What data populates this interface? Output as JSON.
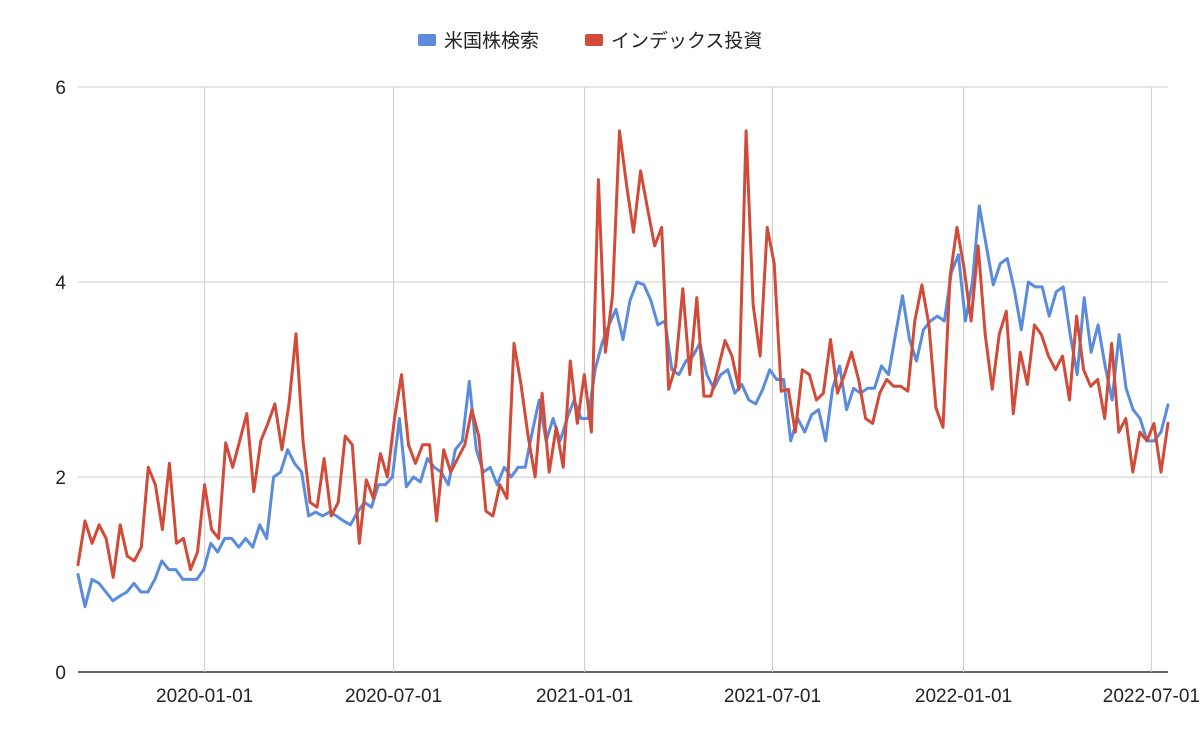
{
  "chart_data": {
    "type": "line",
    "title": "",
    "xlabel": "",
    "ylabel": "",
    "x_start": "2019-09-01",
    "x_end": "2022-07-17",
    "ylim": [
      0,
      6
    ],
    "y_ticks": [
      "0",
      "2",
      "4",
      "6"
    ],
    "x_ticks": [
      {
        "date": "2020-01-01",
        "label": "2020-01-01"
      },
      {
        "date": "2020-07-01",
        "label": "2020-07-01"
      },
      {
        "date": "2021-01-01",
        "label": "2021-01-01"
      },
      {
        "date": "2021-07-01",
        "label": "2021-07-01"
      },
      {
        "date": "2022-01-01",
        "label": "2022-01-01"
      },
      {
        "date": "2022-07-01",
        "label": "2022-07-01"
      }
    ],
    "grid": true,
    "legend_position": "top-center",
    "series": [
      {
        "name": "米国株検索",
        "color": "#5b8bdc",
        "values": [
          1.0,
          0.67,
          0.95,
          0.91,
          0.82,
          0.73,
          0.78,
          0.82,
          0.91,
          0.82,
          0.82,
          0.95,
          1.14,
          1.05,
          1.05,
          0.95,
          0.95,
          0.95,
          1.05,
          1.32,
          1.23,
          1.37,
          1.37,
          1.28,
          1.37,
          1.28,
          1.51,
          1.37,
          2.0,
          2.05,
          2.28,
          2.14,
          2.05,
          1.6,
          1.64,
          1.6,
          1.64,
          1.6,
          1.55,
          1.51,
          1.64,
          1.74,
          1.69,
          1.92,
          1.92,
          2.0,
          2.6,
          1.9,
          2.0,
          1.95,
          2.19,
          2.1,
          2.05,
          1.92,
          2.28,
          2.37,
          2.98,
          2.28,
          2.05,
          2.1,
          1.92,
          2.1,
          2.0,
          2.1,
          2.1,
          2.46,
          2.79,
          2.37,
          2.6,
          2.37,
          2.6,
          2.79,
          2.6,
          2.6,
          3.1,
          3.37,
          3.56,
          3.72,
          3.41,
          3.81,
          4.0,
          3.97,
          3.81,
          3.56,
          3.6,
          3.1,
          3.05,
          3.19,
          3.24,
          3.37,
          3.05,
          2.91,
          3.05,
          3.1,
          2.86,
          2.95,
          2.79,
          2.75,
          2.9,
          3.1,
          3.0,
          3.0,
          2.37,
          2.6,
          2.46,
          2.64,
          2.69,
          2.37,
          2.91,
          3.14,
          2.69,
          2.91,
          2.86,
          2.91,
          2.91,
          3.14,
          3.05,
          3.46,
          3.86,
          3.41,
          3.19,
          3.51,
          3.6,
          3.65,
          3.6,
          4.1,
          4.28,
          3.6,
          4.0,
          4.78,
          4.37,
          3.97,
          4.19,
          4.24,
          3.92,
          3.51,
          4.0,
          3.95,
          3.95,
          3.65,
          3.9,
          3.95,
          3.46,
          3.05,
          3.84,
          3.28,
          3.56,
          3.14,
          2.79,
          3.46,
          2.91,
          2.69,
          2.6,
          2.37,
          2.37,
          2.46,
          2.74
        ]
      },
      {
        "name": "インデックス投資",
        "color": "#d14b38",
        "values": [
          1.1,
          1.55,
          1.32,
          1.51,
          1.37,
          0.97,
          1.51,
          1.19,
          1.14,
          1.28,
          2.1,
          1.92,
          1.46,
          2.14,
          1.32,
          1.37,
          1.05,
          1.23,
          1.92,
          1.46,
          1.37,
          2.35,
          2.1,
          2.37,
          2.65,
          1.85,
          2.37,
          2.55,
          2.75,
          2.28,
          2.75,
          3.47,
          2.37,
          1.74,
          1.69,
          2.19,
          1.6,
          1.74,
          2.42,
          2.33,
          1.32,
          1.97,
          1.78,
          2.24,
          2.0,
          2.6,
          3.05,
          2.33,
          2.14,
          2.33,
          2.33,
          1.55,
          2.28,
          2.05,
          2.19,
          2.33,
          2.69,
          2.42,
          1.65,
          1.6,
          1.92,
          1.78,
          3.37,
          2.95,
          2.42,
          2.0,
          2.86,
          2.05,
          2.51,
          2.1,
          3.19,
          2.55,
          3.05,
          2.46,
          5.05,
          3.28,
          3.86,
          5.55,
          5.0,
          4.51,
          5.14,
          4.75,
          4.37,
          4.56,
          2.9,
          3.14,
          3.93,
          3.05,
          3.84,
          2.83,
          2.83,
          3.1,
          3.4,
          3.24,
          2.9,
          5.55,
          3.77,
          3.24,
          4.56,
          4.19,
          2.88,
          2.9,
          2.46,
          3.1,
          3.05,
          2.79,
          2.86,
          3.41,
          2.86,
          3.05,
          3.28,
          3.0,
          2.6,
          2.55,
          2.86,
          3.0,
          2.93,
          2.93,
          2.88,
          3.6,
          3.97,
          3.56,
          2.71,
          2.51,
          4.05,
          4.56,
          4.14,
          3.6,
          4.37,
          3.46,
          2.9,
          3.46,
          3.7,
          2.65,
          3.28,
          2.95,
          3.56,
          3.46,
          3.24,
          3.1,
          3.24,
          2.79,
          3.65,
          3.1,
          2.93,
          3.0,
          2.6,
          3.37,
          2.46,
          2.6,
          2.05,
          2.46,
          2.37,
          2.55,
          2.05,
          2.55
        ]
      }
    ]
  }
}
